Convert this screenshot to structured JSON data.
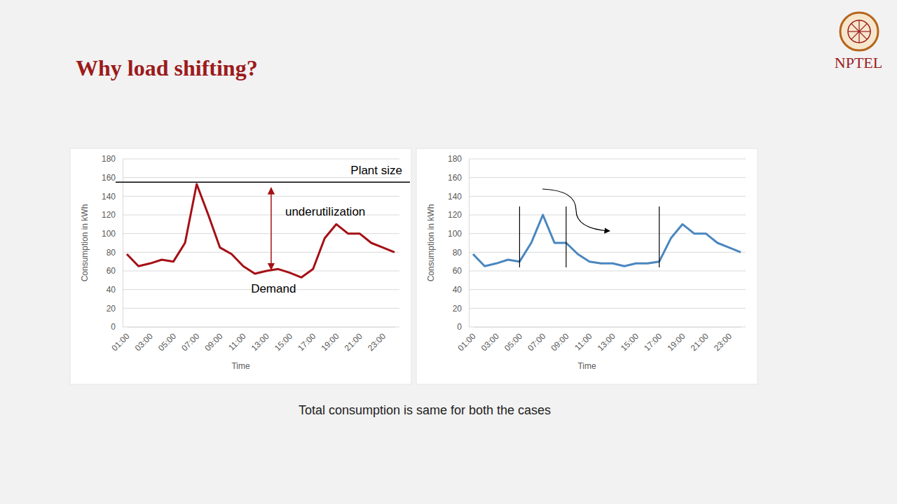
{
  "slide": {
    "title": "Why load shifting?",
    "caption": "Total consumption is same for both the cases",
    "logo": "NPTEL"
  },
  "chart_data": [
    {
      "type": "line",
      "x_label": "Time",
      "y_label": "Consumption in kWh",
      "categories": [
        "01:00",
        null,
        "03:00",
        null,
        "05:00",
        null,
        "07:00",
        null,
        "09:00",
        null,
        "11:00",
        null,
        "13:00",
        null,
        "15:00",
        null,
        "17:00",
        null,
        "19:00",
        null,
        "21:00",
        null,
        "23:00",
        null
      ],
      "values": [
        78,
        65,
        68,
        72,
        70,
        90,
        153,
        120,
        85,
        78,
        65,
        57,
        60,
        62,
        58,
        53,
        62,
        95,
        110,
        100,
        100,
        90,
        85,
        80
      ],
      "color": "#a50f15",
      "ylim": [
        0,
        180
      ],
      "yticks": [
        0,
        20,
        40,
        60,
        80,
        100,
        120,
        140,
        160,
        180
      ],
      "grid": true,
      "annotations": [
        {
          "text": "Plant size",
          "y": 155
        },
        {
          "text": "underutilization",
          "x": 12.4,
          "y_from": 155,
          "y_to": 60
        },
        {
          "text": "Demand",
          "x": 12.6,
          "y": 41
        }
      ]
    },
    {
      "type": "line",
      "x_label": "Time",
      "y_label": "Consumption in kWh",
      "categories": [
        "01:00",
        null,
        "03:00",
        null,
        "05:00",
        null,
        "07:00",
        null,
        "09:00",
        null,
        "11:00",
        null,
        "13:00",
        null,
        "15:00",
        null,
        "17:00",
        null,
        "19:00",
        null,
        "21:00",
        null,
        "23:00",
        null
      ],
      "values": [
        78,
        65,
        68,
        72,
        70,
        90,
        120,
        90,
        90,
        78,
        70,
        68,
        68,
        65,
        68,
        68,
        70,
        95,
        110,
        100,
        100,
        90,
        85,
        80
      ],
      "color": "#4a86c0",
      "ylim": [
        0,
        180
      ],
      "yticks": [
        0,
        20,
        40,
        60,
        80,
        100,
        120,
        140,
        160,
        180
      ],
      "grid": true,
      "vertical_lines": [
        4,
        8,
        16
      ]
    }
  ]
}
